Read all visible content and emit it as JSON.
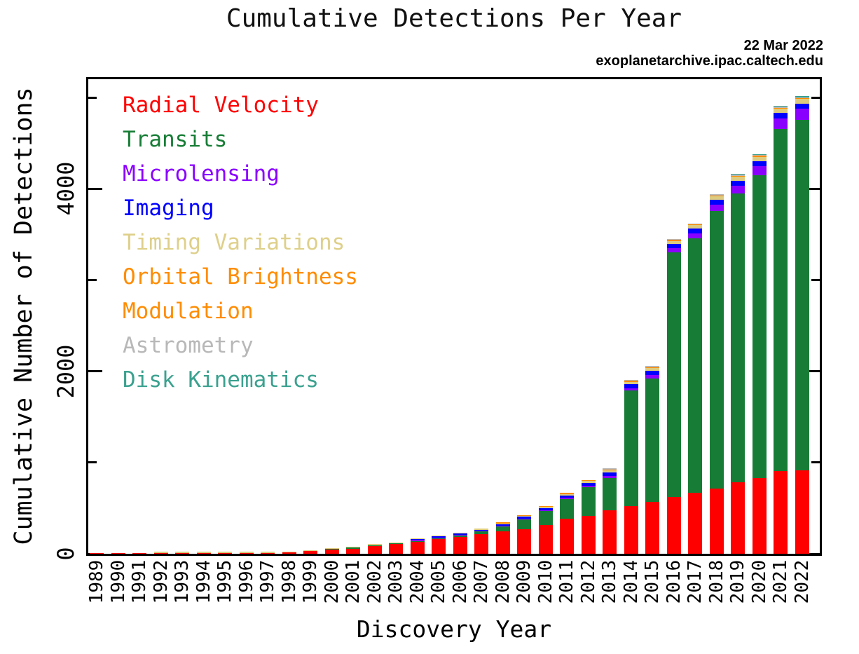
{
  "title": "Cumulative Detections Per Year",
  "stamp": {
    "date": "22 Mar 2022",
    "source": "exoplanetarchive.ipac.caltech.edu"
  },
  "chart_data": {
    "type": "bar",
    "stacked": true,
    "title": "Cumulative Detections Per Year",
    "xlabel": "Discovery Year",
    "ylabel": "Cumulative Number of Detections",
    "ylim": [
      0,
      5200
    ],
    "grid": false,
    "legend_position": "top-left",
    "yticks": {
      "major": [
        0,
        2000,
        4000
      ],
      "major_labels": [
        "0",
        "2000",
        "4000"
      ],
      "minor": [
        1000,
        3000,
        5000
      ]
    },
    "categories": [
      "1989",
      "1990",
      "1991",
      "1992",
      "1993",
      "1994",
      "1995",
      "1996",
      "1997",
      "1998",
      "1999",
      "2000",
      "2001",
      "2002",
      "2003",
      "2004",
      "2005",
      "2006",
      "2007",
      "2008",
      "2009",
      "2010",
      "2011",
      "2012",
      "2013",
      "2014",
      "2015",
      "2016",
      "2017",
      "2018",
      "2019",
      "2020",
      "2021",
      "2022"
    ],
    "series": [
      {
        "name": "Radial Velocity",
        "color": "#fe0000",
        "cumulative_values": [
          1,
          1,
          1,
          1,
          1,
          1,
          2,
          8,
          9,
          17,
          29,
          44,
          56,
          85,
          106,
          130,
          160,
          185,
          213,
          248,
          269,
          315,
          384,
          418,
          474,
          526,
          572,
          620,
          665,
          712,
          785,
          833,
          908,
          917
        ]
      },
      {
        "name": "Transits",
        "color": "#177d36",
        "cumulative_values": [
          0,
          0,
          0,
          0,
          0,
          0,
          0,
          0,
          0,
          0,
          0,
          1,
          1,
          2,
          3,
          7,
          10,
          16,
          30,
          53,
          109,
          150,
          213,
          310,
          355,
          1261,
          1350,
          2680,
          2790,
          3044,
          3165,
          3318,
          3750,
          3839
        ]
      },
      {
        "name": "Microlensing",
        "color": "#8a00ff",
        "cumulative_values": [
          0,
          0,
          0,
          0,
          0,
          0,
          0,
          0,
          0,
          0,
          0,
          0,
          0,
          0,
          0,
          1,
          3,
          4,
          5,
          7,
          9,
          12,
          15,
          18,
          24,
          29,
          38,
          47,
          58,
          70,
          86,
          99,
          113,
          119
        ]
      },
      {
        "name": "Imaging",
        "color": "#0000fe",
        "cumulative_values": [
          0,
          0,
          0,
          0,
          0,
          0,
          0,
          0,
          0,
          0,
          0,
          0,
          0,
          0,
          0,
          1,
          4,
          7,
          9,
          13,
          17,
          23,
          27,
          31,
          36,
          41,
          44,
          47,
          49,
          51,
          53,
          55,
          58,
          59
        ]
      },
      {
        "name": "Timing Variations",
        "color": "#ddcb80",
        "cumulative_values": [
          0,
          0,
          0,
          2,
          2,
          3,
          3,
          3,
          3,
          3,
          3,
          3,
          3,
          3,
          4,
          5,
          5,
          6,
          8,
          9,
          10,
          12,
          16,
          21,
          25,
          28,
          31,
          35,
          38,
          41,
          44,
          46,
          48,
          49
        ]
      },
      {
        "name": "Orbital Brightness Modulation",
        "color": "#ff8c00",
        "cumulative_values": [
          0,
          0,
          0,
          0,
          0,
          0,
          0,
          0,
          0,
          0,
          0,
          0,
          0,
          0,
          0,
          0,
          0,
          0,
          0,
          1,
          1,
          1,
          4,
          5,
          7,
          7,
          8,
          8,
          8,
          9,
          9,
          9,
          9,
          9
        ]
      },
      {
        "name": "Astrometry",
        "color": "#b8b8b8",
        "cumulative_values": [
          0,
          0,
          0,
          0,
          0,
          0,
          0,
          0,
          0,
          0,
          0,
          0,
          0,
          0,
          0,
          0,
          0,
          0,
          0,
          0,
          0,
          0,
          0,
          0,
          1,
          1,
          1,
          1,
          1,
          1,
          1,
          1,
          2,
          2
        ]
      },
      {
        "name": "Disk Kinematics",
        "color": "#3ba18f",
        "cumulative_values": [
          0,
          0,
          0,
          0,
          0,
          0,
          0,
          0,
          0,
          0,
          0,
          0,
          0,
          0,
          0,
          0,
          0,
          0,
          0,
          0,
          0,
          0,
          0,
          0,
          0,
          0,
          0,
          0,
          0,
          0,
          1,
          1,
          1,
          1
        ]
      }
    ],
    "legend_lines": [
      {
        "text": "Radial Velocity",
        "color": "#fe0000"
      },
      {
        "text": "Transits",
        "color": "#177d36"
      },
      {
        "text": "Microlensing",
        "color": "#8a00ff"
      },
      {
        "text": "Imaging",
        "color": "#0000fe"
      },
      {
        "text": "Timing Variations",
        "color": "#ded08a"
      },
      {
        "text": "Orbital Brightness",
        "color": "#ff8c00"
      },
      {
        "text": "Modulation",
        "color": "#ff8c00"
      },
      {
        "text": "Astrometry",
        "color": "#b8b8b8"
      },
      {
        "text": "Disk Kinematics",
        "color": "#3ba18f"
      }
    ]
  }
}
